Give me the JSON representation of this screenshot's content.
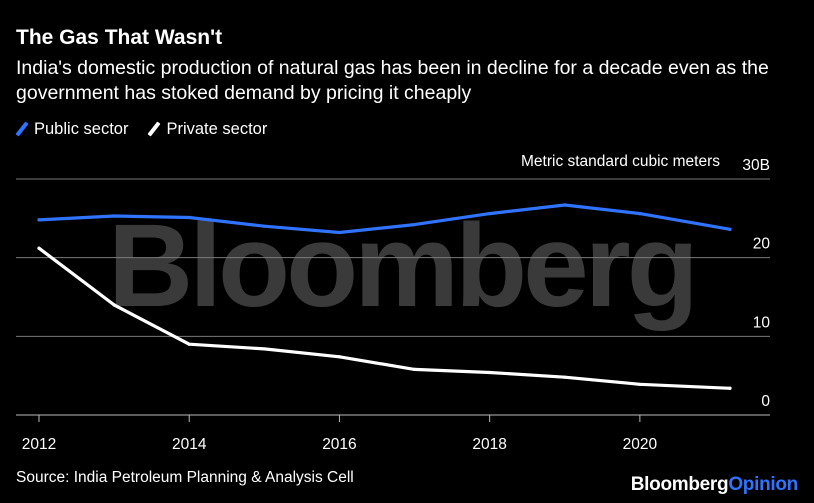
{
  "header": {
    "title": "The Gas That Wasn't",
    "subtitle": "India's domestic production of natural gas has been in decline for a decade even as the government has stoked demand by pricing it cheaply"
  },
  "footer": {
    "source": "Source: India Petroleum Planning & Analysis Cell",
    "brand_main": "Bloomberg",
    "brand_accent": "Opinion"
  },
  "watermark": "Bloomberg",
  "colors": {
    "background": "#000000",
    "public_sector": "#2f73ff",
    "private_sector": "#ffffff",
    "gridline": "#7a7a7a",
    "text": "#ffffff"
  },
  "chart_data": {
    "type": "line",
    "title": "The Gas That Wasn't",
    "ylabel": "Metric standard cubic meters",
    "xlabel": "",
    "xlim": [
      2012,
      2021.2
    ],
    "ylim": [
      0,
      30
    ],
    "grid": true,
    "legend_position": "top-left",
    "x_ticks": [
      2012,
      2014,
      2016,
      2018,
      2020
    ],
    "x_tick_labels": [
      "2012",
      "2014",
      "2016",
      "2018",
      "2020"
    ],
    "y_ticks": [
      0,
      10,
      20,
      30
    ],
    "y_tick_labels": [
      "0",
      "10",
      "20",
      "30B"
    ],
    "x": [
      2012,
      2013,
      2014,
      2015,
      2016,
      2017,
      2018,
      2019,
      2020,
      2021.2
    ],
    "series": [
      {
        "name": "Public sector",
        "color": "#2f73ff",
        "values": [
          24.8,
          25.3,
          25.1,
          24.0,
          23.2,
          24.2,
          25.6,
          26.7,
          25.6,
          23.6
        ]
      },
      {
        "name": "Private sector",
        "color": "#ffffff",
        "values": [
          21.2,
          14.0,
          9.0,
          8.4,
          7.4,
          5.8,
          5.4,
          4.8,
          3.9,
          3.4
        ]
      }
    ]
  }
}
